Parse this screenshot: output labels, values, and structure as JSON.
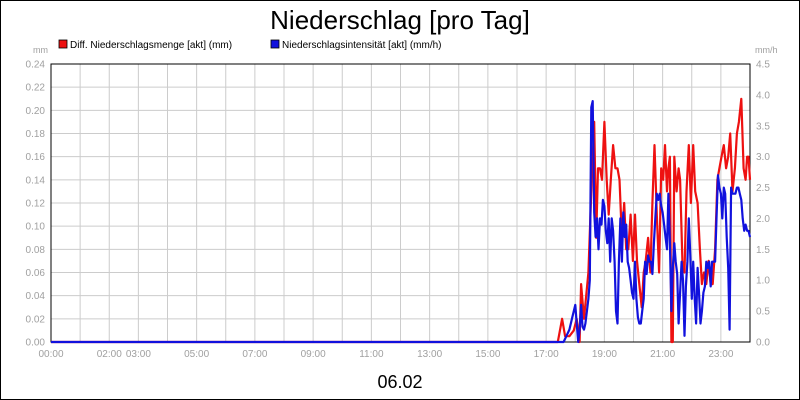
{
  "chart_data": {
    "type": "line",
    "title": "Niederschlag [pro Tag]",
    "date_label": "06.02",
    "y_left": {
      "unit": "mm",
      "min": 0,
      "max": 0.24,
      "ticks": [
        "0.00",
        "0.02",
        "0.04",
        "0.06",
        "0.08",
        "0.10",
        "0.12",
        "0.14",
        "0.16",
        "0.18",
        "0.20",
        "0.22",
        "0.24"
      ]
    },
    "y_right": {
      "unit": "mm/h",
      "min": 0,
      "max": 4.5,
      "ticks": [
        "0.0",
        "0.5",
        "1.0",
        "1.5",
        "2.0",
        "2.5",
        "3.0",
        "3.5",
        "4.0",
        "4.5"
      ]
    },
    "x_range_hours": [
      0,
      24
    ],
    "x_ticks": [
      {
        "h": 0,
        "label": "00:00"
      },
      {
        "h": 2,
        "label": "02:00"
      },
      {
        "h": 3,
        "label": "03:00"
      },
      {
        "h": 5,
        "label": "05:00"
      },
      {
        "h": 7,
        "label": "07:00"
      },
      {
        "h": 9,
        "label": "09:00"
      },
      {
        "h": 11,
        "label": "11:00"
      },
      {
        "h": 13,
        "label": "13:00"
      },
      {
        "h": 15,
        "label": "15:00"
      },
      {
        "h": 17,
        "label": "17:00"
      },
      {
        "h": 19,
        "label": "19:00"
      },
      {
        "h": 21,
        "label": "21:00"
      },
      {
        "h": 23,
        "label": "23:00"
      }
    ],
    "grid": true,
    "legend_position": "top-left",
    "series": [
      {
        "name": "Diff. Niederschlagsmenge [akt] (mm)",
        "axis": "left",
        "color": "#ee1111",
        "points": [
          [
            0,
            0
          ],
          [
            17.4,
            0
          ],
          [
            17.55,
            0.02
          ],
          [
            17.65,
            0.005
          ],
          [
            17.8,
            0.005
          ],
          [
            17.95,
            0.01
          ],
          [
            18.05,
            0.02
          ],
          [
            18.15,
            0.0
          ],
          [
            18.2,
            0.05
          ],
          [
            18.3,
            0.02
          ],
          [
            18.45,
            0.06
          ],
          [
            18.55,
            0.13
          ],
          [
            18.65,
            0.19
          ],
          [
            18.72,
            0.09
          ],
          [
            18.78,
            0.15
          ],
          [
            18.85,
            0.15
          ],
          [
            18.92,
            0.14
          ],
          [
            19.0,
            0.19
          ],
          [
            19.08,
            0.14
          ],
          [
            19.15,
            0.11
          ],
          [
            19.22,
            0.14
          ],
          [
            19.3,
            0.17
          ],
          [
            19.38,
            0.15
          ],
          [
            19.45,
            0.15
          ],
          [
            19.52,
            0.14
          ],
          [
            19.6,
            0.09
          ],
          [
            19.68,
            0.12
          ],
          [
            19.75,
            0.08
          ],
          [
            19.82,
            0.08
          ],
          [
            19.9,
            0.11
          ],
          [
            19.98,
            0.07
          ],
          [
            20.05,
            0.11
          ],
          [
            20.12,
            0.07
          ],
          [
            20.2,
            0.05
          ],
          [
            20.28,
            0.03
          ],
          [
            20.35,
            0.06
          ],
          [
            20.42,
            0.07
          ],
          [
            20.5,
            0.09
          ],
          [
            20.58,
            0.06
          ],
          [
            20.65,
            0.12
          ],
          [
            20.72,
            0.17
          ],
          [
            20.8,
            0.11
          ],
          [
            20.88,
            0.06
          ],
          [
            20.95,
            0.15
          ],
          [
            21.02,
            0.14
          ],
          [
            21.08,
            0.17
          ],
          [
            21.15,
            0.13
          ],
          [
            21.2,
            0.15
          ],
          [
            21.25,
            0.16
          ],
          [
            21.3,
            0.0
          ],
          [
            21.35,
            0.0
          ],
          [
            21.4,
            0.16
          ],
          [
            21.48,
            0.13
          ],
          [
            21.55,
            0.15
          ],
          [
            21.6,
            0.14
          ],
          [
            21.68,
            0.07
          ],
          [
            21.75,
            0.06
          ],
          [
            21.82,
            0.13
          ],
          [
            21.9,
            0.17
          ],
          [
            21.97,
            0.12
          ],
          [
            22.05,
            0.17
          ],
          [
            22.12,
            0.13
          ],
          [
            22.2,
            0.12
          ],
          [
            22.28,
            0.08
          ],
          [
            22.35,
            0.05
          ],
          [
            22.42,
            0.06
          ],
          [
            22.5,
            0.05
          ],
          [
            22.58,
            0.07
          ],
          [
            22.65,
            0.05
          ],
          [
            22.72,
            0.05
          ],
          [
            22.8,
            0.08
          ],
          [
            22.88,
            0.14
          ],
          [
            22.95,
            0.15
          ],
          [
            23.02,
            0.16
          ],
          [
            23.1,
            0.17
          ],
          [
            23.18,
            0.15
          ],
          [
            23.25,
            0.16
          ],
          [
            23.32,
            0.18
          ],
          [
            23.4,
            0.13
          ],
          [
            23.48,
            0.15
          ],
          [
            23.55,
            0.18
          ],
          [
            23.62,
            0.19
          ],
          [
            23.7,
            0.21
          ],
          [
            23.78,
            0.15
          ],
          [
            23.85,
            0.14
          ],
          [
            23.9,
            0.16
          ],
          [
            23.95,
            0.16
          ],
          [
            24,
            0.14
          ]
        ]
      },
      {
        "name": "Niederschlagsintensität [akt] (mm/h)",
        "axis": "right",
        "color": "#1111dd",
        "points": [
          [
            0,
            0
          ],
          [
            17.5,
            0
          ],
          [
            17.6,
            0.0
          ],
          [
            17.7,
            0.1
          ],
          [
            17.8,
            0.2
          ],
          [
            17.9,
            0.4
          ],
          [
            18.0,
            0.6
          ],
          [
            18.05,
            0.3
          ],
          [
            18.1,
            0.0
          ],
          [
            18.15,
            0.2
          ],
          [
            18.2,
            0.6
          ],
          [
            18.25,
            0.25
          ],
          [
            18.3,
            0.2
          ],
          [
            18.35,
            0.3
          ],
          [
            18.45,
            0.7
          ],
          [
            18.5,
            1.0
          ],
          [
            18.55,
            3.8
          ],
          [
            18.6,
            3.9
          ],
          [
            18.65,
            2.1
          ],
          [
            18.7,
            1.7
          ],
          [
            18.75,
            2.0
          ],
          [
            18.8,
            1.5
          ],
          [
            18.85,
            2.0
          ],
          [
            18.9,
            1.9
          ],
          [
            18.95,
            2.3
          ],
          [
            19.0,
            2.2
          ],
          [
            19.05,
            1.8
          ],
          [
            19.1,
            1.6
          ],
          [
            19.15,
            2.0
          ],
          [
            19.2,
            1.3
          ],
          [
            19.25,
            2.0
          ],
          [
            19.3,
            1.8
          ],
          [
            19.35,
            1.3
          ],
          [
            19.4,
            0.5
          ],
          [
            19.45,
            0.3
          ],
          [
            19.5,
            1.3
          ],
          [
            19.55,
            2.0
          ],
          [
            19.6,
            1.3
          ],
          [
            19.65,
            2.1
          ],
          [
            19.7,
            1.7
          ],
          [
            19.75,
            1.9
          ],
          [
            19.8,
            1.3
          ],
          [
            19.85,
            1.2
          ],
          [
            19.9,
            1.0
          ],
          [
            19.95,
            0.8
          ],
          [
            20.0,
            0.7
          ],
          [
            20.05,
            1.3
          ],
          [
            20.1,
            0.7
          ],
          [
            20.15,
            0.4
          ],
          [
            20.2,
            0.3
          ],
          [
            20.25,
            0.3
          ],
          [
            20.3,
            0.5
          ],
          [
            20.35,
            0.7
          ],
          [
            20.4,
            1.3
          ],
          [
            20.45,
            1.1
          ],
          [
            20.5,
            1.4
          ],
          [
            20.55,
            1.3
          ],
          [
            20.6,
            1.3
          ],
          [
            20.65,
            1.1
          ],
          [
            20.7,
            1.6
          ],
          [
            20.75,
            2.0
          ],
          [
            20.8,
            2.4
          ],
          [
            20.85,
            2.3
          ],
          [
            20.9,
            2.4
          ],
          [
            20.95,
            2.2
          ],
          [
            21.0,
            2.1
          ],
          [
            21.05,
            1.9
          ],
          [
            21.1,
            1.7
          ],
          [
            21.15,
            1.5
          ],
          [
            21.2,
            2.4
          ],
          [
            21.25,
            1.6
          ],
          [
            21.3,
            0.5
          ],
          [
            21.35,
            1.2
          ],
          [
            21.4,
            1.6
          ],
          [
            21.45,
            1.3
          ],
          [
            21.5,
            1.1
          ],
          [
            21.55,
            0.3
          ],
          [
            21.6,
            0.8
          ],
          [
            21.65,
            1.3
          ],
          [
            21.7,
            1.0
          ],
          [
            21.75,
            0.1
          ],
          [
            21.8,
            0.9
          ],
          [
            21.85,
            1.3
          ],
          [
            21.9,
            2.0
          ],
          [
            21.95,
            1.4
          ],
          [
            22.0,
            0.7
          ],
          [
            22.05,
            1.3
          ],
          [
            22.1,
            0.7
          ],
          [
            22.15,
            0.3
          ],
          [
            22.2,
            1.2
          ],
          [
            22.25,
            0.8
          ],
          [
            22.3,
            0.3
          ],
          [
            22.35,
            0.5
          ],
          [
            22.4,
            0.8
          ],
          [
            22.45,
            0.9
          ],
          [
            22.5,
            1.3
          ],
          [
            22.55,
            1.2
          ],
          [
            22.6,
            1.3
          ],
          [
            22.65,
            0.9
          ],
          [
            22.7,
            1.3
          ],
          [
            22.75,
            1.3
          ],
          [
            22.8,
            1.3
          ],
          [
            22.85,
            2.0
          ],
          [
            22.9,
            2.7
          ],
          [
            22.95,
            2.5
          ],
          [
            23.0,
            2.4
          ],
          [
            23.05,
            2.0
          ],
          [
            23.1,
            2.5
          ],
          [
            23.15,
            2.4
          ],
          [
            23.2,
            1.7
          ],
          [
            23.25,
            1.2
          ],
          [
            23.3,
            0.2
          ],
          [
            23.35,
            2.5
          ],
          [
            23.4,
            2.4
          ],
          [
            23.45,
            2.4
          ],
          [
            23.5,
            2.4
          ],
          [
            23.55,
            2.5
          ],
          [
            23.6,
            2.5
          ],
          [
            23.65,
            2.4
          ],
          [
            23.7,
            2.3
          ],
          [
            23.75,
            2.0
          ],
          [
            23.8,
            1.8
          ],
          [
            23.85,
            1.9
          ],
          [
            23.9,
            1.8
          ],
          [
            23.95,
            1.8
          ],
          [
            24,
            1.7
          ]
        ]
      }
    ]
  }
}
